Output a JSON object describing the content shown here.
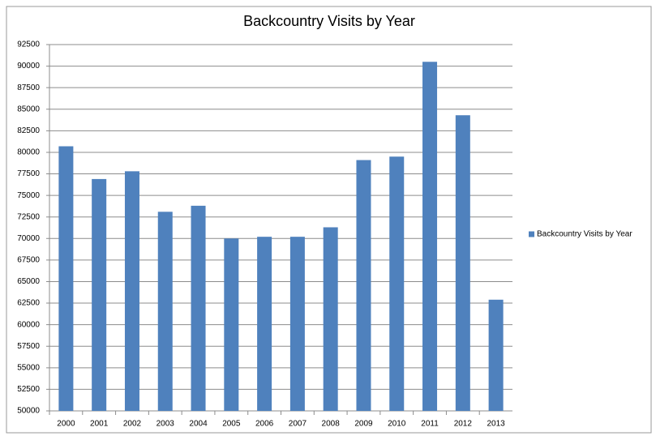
{
  "chart_data": {
    "type": "bar",
    "title": "Backcountry Visits by Year",
    "categories": [
      "2000",
      "2001",
      "2002",
      "2003",
      "2004",
      "2005",
      "2006",
      "2007",
      "2008",
      "2009",
      "2010",
      "2011",
      "2012",
      "2013"
    ],
    "series": [
      {
        "name": "Backcountry Visits by Year",
        "color": "#4f81bd",
        "values": [
          80700,
          76900,
          77800,
          73100,
          73800,
          70000,
          70200,
          70200,
          71300,
          79100,
          79500,
          90500,
          84300,
          62900
        ]
      }
    ],
    "ylim": [
      50000,
      92500
    ],
    "yticks": [
      50000,
      52500,
      55000,
      57500,
      60000,
      62500,
      65000,
      67500,
      70000,
      72500,
      75000,
      77500,
      80000,
      82500,
      85000,
      87500,
      90000,
      92500
    ],
    "grid": true,
    "legend": "right"
  }
}
